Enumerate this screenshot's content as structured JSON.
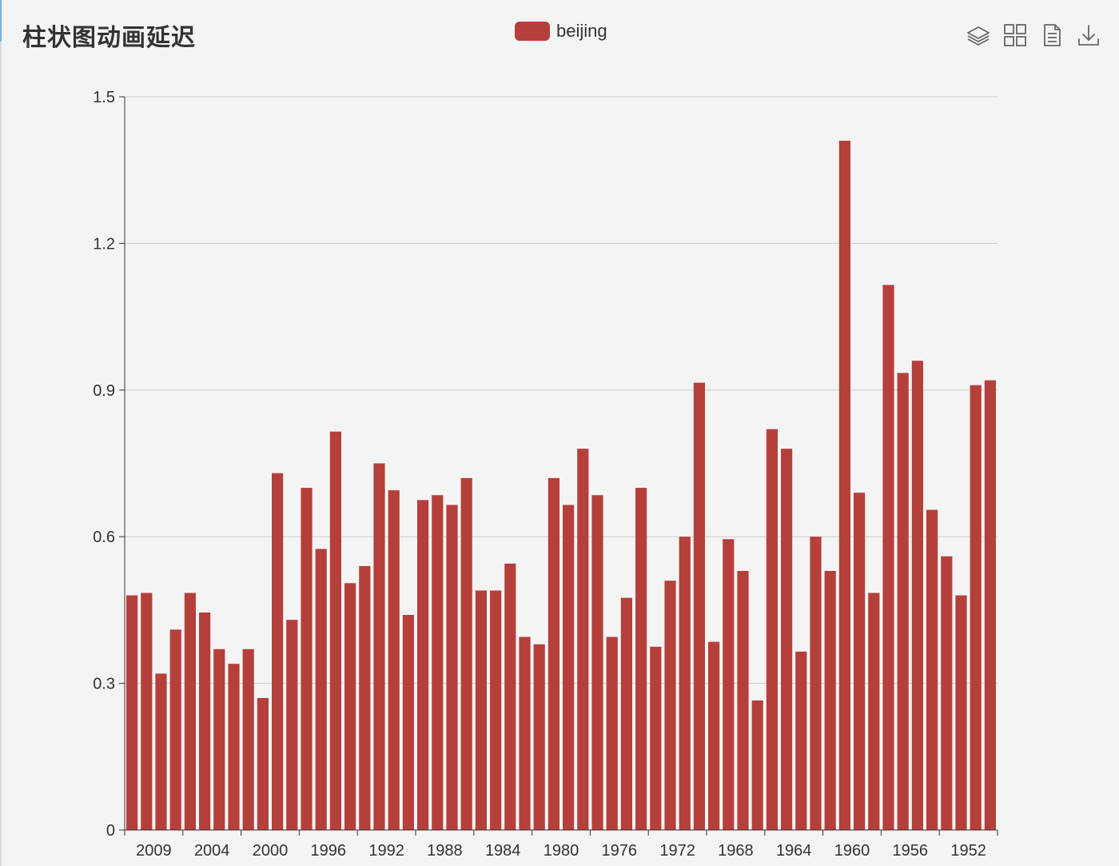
{
  "title": "柱状图动画延迟",
  "legend": {
    "label": "beijing"
  },
  "toolbox": {
    "icons": [
      "stack-icon",
      "tile-icon",
      "data-view-icon",
      "download-icon"
    ]
  },
  "colors": {
    "bar": "#b5403b",
    "grid": "#cccccc",
    "axis": "#333333"
  },
  "chart_data": {
    "type": "bar",
    "series": [
      {
        "name": "beijing",
        "values": [
          0.48,
          0.485,
          0.32,
          0.41,
          0.485,
          0.445,
          0.37,
          0.34,
          0.37,
          0.27,
          0.73,
          0.43,
          0.7,
          0.575,
          0.815,
          0.505,
          0.54,
          0.75,
          0.695,
          0.44,
          0.675,
          0.685,
          0.665,
          0.72,
          0.49,
          0.49,
          0.545,
          0.395,
          0.38,
          0.72,
          0.665,
          0.78,
          0.685,
          0.395,
          0.475,
          0.7,
          0.375,
          0.51,
          0.6,
          0.915,
          0.385,
          0.595,
          0.53,
          0.265,
          0.82,
          0.78,
          0.365,
          0.6,
          0.53,
          1.41,
          0.69,
          0.485,
          1.115,
          0.935,
          0.96,
          0.655,
          0.56,
          0.48,
          0.91,
          0.92
        ]
      }
    ],
    "x_tick_labels": [
      "2009",
      "2004",
      "2000",
      "1996",
      "1992",
      "1988",
      "1984",
      "1980",
      "1976",
      "1972",
      "1968",
      "1964",
      "1960",
      "1956",
      "1952"
    ],
    "y_tick_labels": [
      "0",
      "0.3",
      "0.6",
      "0.9",
      "1.2",
      "1.5"
    ],
    "ylim": [
      0,
      1.5
    ],
    "grid": true,
    "legend_position": "top-center"
  }
}
